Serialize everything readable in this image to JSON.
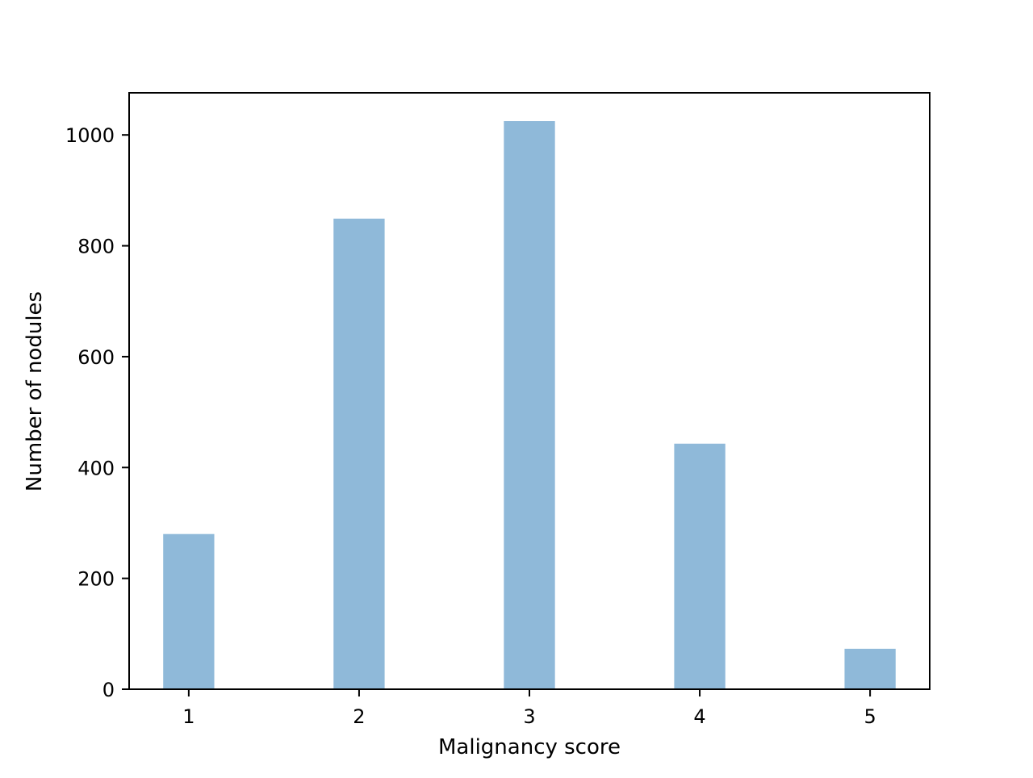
{
  "chart_data": {
    "type": "bar",
    "title": "",
    "xlabel": "Malignancy score",
    "ylabel": "Number of nodules",
    "x": [
      1,
      2,
      3,
      4,
      5
    ],
    "x_tick_labels": [
      "1",
      "2",
      "3",
      "4",
      "5"
    ],
    "values": [
      280,
      849,
      1025,
      443,
      73
    ],
    "xlim": [
      0.65,
      5.35
    ],
    "ylim": [
      0,
      1076
    ],
    "y_ticks": [
      0,
      200,
      400,
      600,
      800,
      1000
    ],
    "y_tick_labels": [
      "0",
      "200",
      "400",
      "600",
      "800",
      "1000"
    ],
    "bar_width": 0.3,
    "bar_color": "#8fb9d9",
    "grid": false,
    "legend": "none"
  }
}
